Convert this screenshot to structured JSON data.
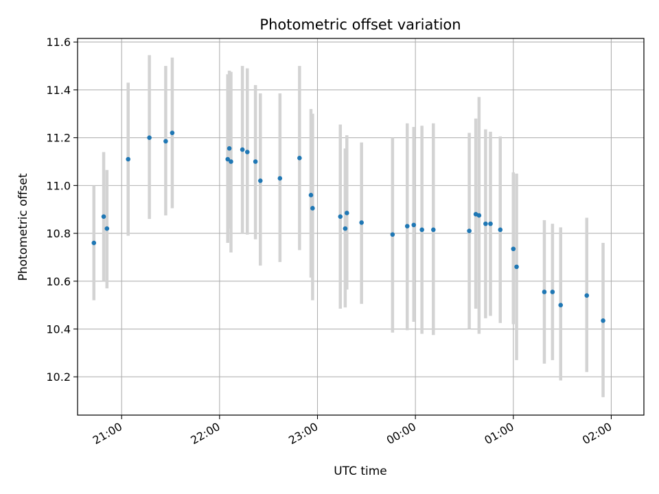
{
  "chart_data": {
    "type": "scatter",
    "title": "Photometric offset variation",
    "xlabel": "UTC time",
    "ylabel": "Photometric offset",
    "x_axis": "time",
    "xlim": [
      "20:33",
      "02:20"
    ],
    "ylim": [
      10.04,
      11.615
    ],
    "x_ticks": [
      "21:00",
      "22:00",
      "23:00",
      "00:00",
      "01:00",
      "02:00"
    ],
    "y_ticks": [
      "10.2",
      "10.4",
      "10.6",
      "10.8",
      "11.0",
      "11.2",
      "11.4",
      "11.6"
    ],
    "grid": true,
    "colors": {
      "point": "#1f77b4",
      "errorbar": "#d3d3d3",
      "grid": "#b0b0b0"
    },
    "series": [
      {
        "points": [
          {
            "t": "20:43",
            "y": 10.76,
            "lo": 10.52,
            "hi": 11.0
          },
          {
            "t": "20:49",
            "y": 10.87,
            "lo": 10.6,
            "hi": 11.14
          },
          {
            "t": "20:51",
            "y": 10.82,
            "lo": 10.57,
            "hi": 11.065
          },
          {
            "t": "21:04",
            "y": 11.11,
            "lo": 10.79,
            "hi": 11.43
          },
          {
            "t": "21:17",
            "y": 11.2,
            "lo": 10.86,
            "hi": 11.545
          },
          {
            "t": "21:27",
            "y": 11.185,
            "lo": 10.875,
            "hi": 11.5
          },
          {
            "t": "21:31",
            "y": 11.22,
            "lo": 10.905,
            "hi": 11.535
          },
          {
            "t": "22:05",
            "y": 11.11,
            "lo": 10.76,
            "hi": 11.465
          },
          {
            "t": "22:06",
            "y": 11.155,
            "lo": 10.82,
            "hi": 11.48
          },
          {
            "t": "22:07",
            "y": 11.1,
            "lo": 10.72,
            "hi": 11.475
          },
          {
            "t": "22:14",
            "y": 11.15,
            "lo": 10.8,
            "hi": 11.5
          },
          {
            "t": "22:17",
            "y": 11.14,
            "lo": 10.795,
            "hi": 11.49
          },
          {
            "t": "22:22",
            "y": 11.1,
            "lo": 10.775,
            "hi": 11.42
          },
          {
            "t": "22:25",
            "y": 11.02,
            "lo": 10.665,
            "hi": 11.385
          },
          {
            "t": "22:37",
            "y": 11.03,
            "lo": 10.68,
            "hi": 11.385
          },
          {
            "t": "22:49",
            "y": 11.115,
            "lo": 10.73,
            "hi": 11.5
          },
          {
            "t": "22:56",
            "y": 10.96,
            "lo": 10.615,
            "hi": 11.32
          },
          {
            "t": "22:57",
            "y": 10.905,
            "lo": 10.52,
            "hi": 11.3
          },
          {
            "t": "23:14",
            "y": 10.87,
            "lo": 10.485,
            "hi": 11.255
          },
          {
            "t": "23:17",
            "y": 10.82,
            "lo": 10.49,
            "hi": 11.155
          },
          {
            "t": "23:18",
            "y": 10.885,
            "lo": 10.565,
            "hi": 11.21
          },
          {
            "t": "23:27",
            "y": 10.845,
            "lo": 10.505,
            "hi": 11.18
          },
          {
            "t": "23:46",
            "y": 10.795,
            "lo": 10.385,
            "hi": 11.2
          },
          {
            "t": "23:55",
            "y": 10.83,
            "lo": 10.395,
            "hi": 11.26
          },
          {
            "t": "23:59",
            "y": 10.835,
            "lo": 10.43,
            "hi": 11.245
          },
          {
            "t": "00:04",
            "y": 10.815,
            "lo": 10.38,
            "hi": 11.25
          },
          {
            "t": "00:11",
            "y": 10.815,
            "lo": 10.375,
            "hi": 11.26
          },
          {
            "t": "00:33",
            "y": 10.81,
            "lo": 10.4,
            "hi": 11.22
          },
          {
            "t": "00:37",
            "y": 10.88,
            "lo": 10.485,
            "hi": 11.28
          },
          {
            "t": "00:39",
            "y": 10.875,
            "lo": 10.38,
            "hi": 11.37
          },
          {
            "t": "00:43",
            "y": 10.84,
            "lo": 10.445,
            "hi": 11.235
          },
          {
            "t": "00:46",
            "y": 10.84,
            "lo": 10.455,
            "hi": 11.225
          },
          {
            "t": "00:52",
            "y": 10.815,
            "lo": 10.425,
            "hi": 11.205
          },
          {
            "t": "01:00",
            "y": 10.735,
            "lo": 10.42,
            "hi": 11.055
          },
          {
            "t": "01:02",
            "y": 10.66,
            "lo": 10.27,
            "hi": 11.05
          },
          {
            "t": "01:19",
            "y": 10.555,
            "lo": 10.255,
            "hi": 10.855
          },
          {
            "t": "01:24",
            "y": 10.555,
            "lo": 10.27,
            "hi": 10.84
          },
          {
            "t": "01:29",
            "y": 10.5,
            "lo": 10.185,
            "hi": 10.825
          },
          {
            "t": "01:45",
            "y": 10.54,
            "lo": 10.22,
            "hi": 10.865
          },
          {
            "t": "01:55",
            "y": 10.435,
            "lo": 10.115,
            "hi": 10.76
          }
        ]
      }
    ]
  }
}
